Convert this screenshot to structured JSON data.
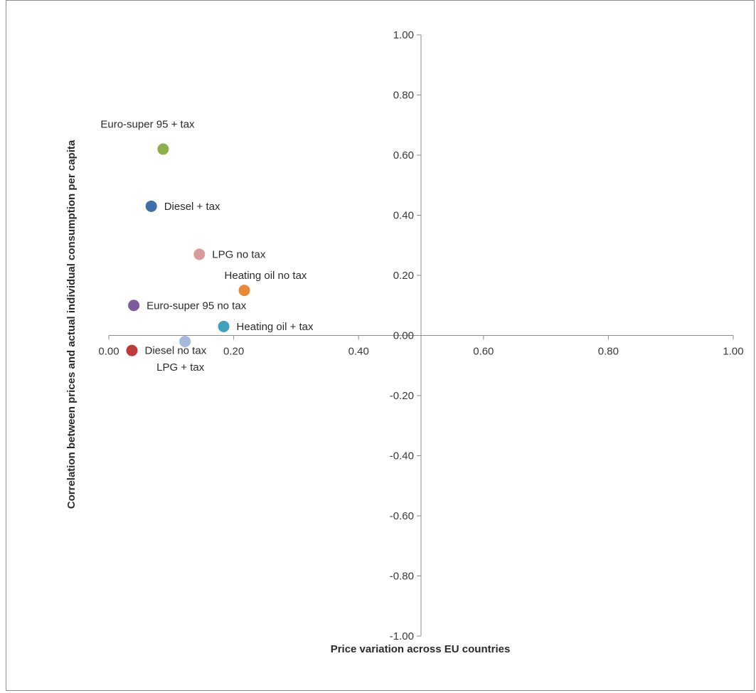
{
  "chart_data": {
    "type": "scatter",
    "title": "",
    "xlabel": "Price variation across EU countries",
    "ylabel": "Correlation between prices and actual individual consumption per capita",
    "xlim": [
      0,
      1
    ],
    "ylim": [
      -1,
      1
    ],
    "x_ticks": [
      "0.00",
      "0.20",
      "0.40",
      "0.60",
      "0.80",
      "1.00"
    ],
    "y_ticks": [
      "1.00",
      "0.80",
      "0.60",
      "0.40",
      "0.20",
      "0.00",
      "-0.20",
      "-0.40",
      "-0.60",
      "-0.80",
      "-1.00"
    ],
    "grid": false,
    "legend": "none",
    "points": [
      {
        "label": "Euro-super 95 + tax",
        "x": 0.087,
        "y": 0.62,
        "color": "#8db04a",
        "label_pos": "above-left"
      },
      {
        "label": "Diesel + tax",
        "x": 0.068,
        "y": 0.43,
        "color": "#3f6fa8",
        "label_pos": "right"
      },
      {
        "label": "LPG no tax",
        "x": 0.145,
        "y": 0.27,
        "color": "#d99a9c",
        "label_pos": "right"
      },
      {
        "label": "Heating oil no tax",
        "x": 0.217,
        "y": 0.15,
        "color": "#e8893a",
        "label_pos": "above"
      },
      {
        "label": "Euro-super 95 no tax",
        "x": 0.04,
        "y": 0.1,
        "color": "#7b5b9c",
        "label_pos": "right"
      },
      {
        "label": "Heating oil + tax",
        "x": 0.184,
        "y": 0.03,
        "color": "#3fa1bb",
        "label_pos": "right"
      },
      {
        "label": "LPG + tax",
        "x": 0.122,
        "y": -0.02,
        "color": "#a5b8de",
        "label_pos": "below"
      },
      {
        "label": "Diesel no tax",
        "x": 0.037,
        "y": -0.05,
        "color": "#c0393b",
        "label_pos": "right"
      }
    ]
  }
}
